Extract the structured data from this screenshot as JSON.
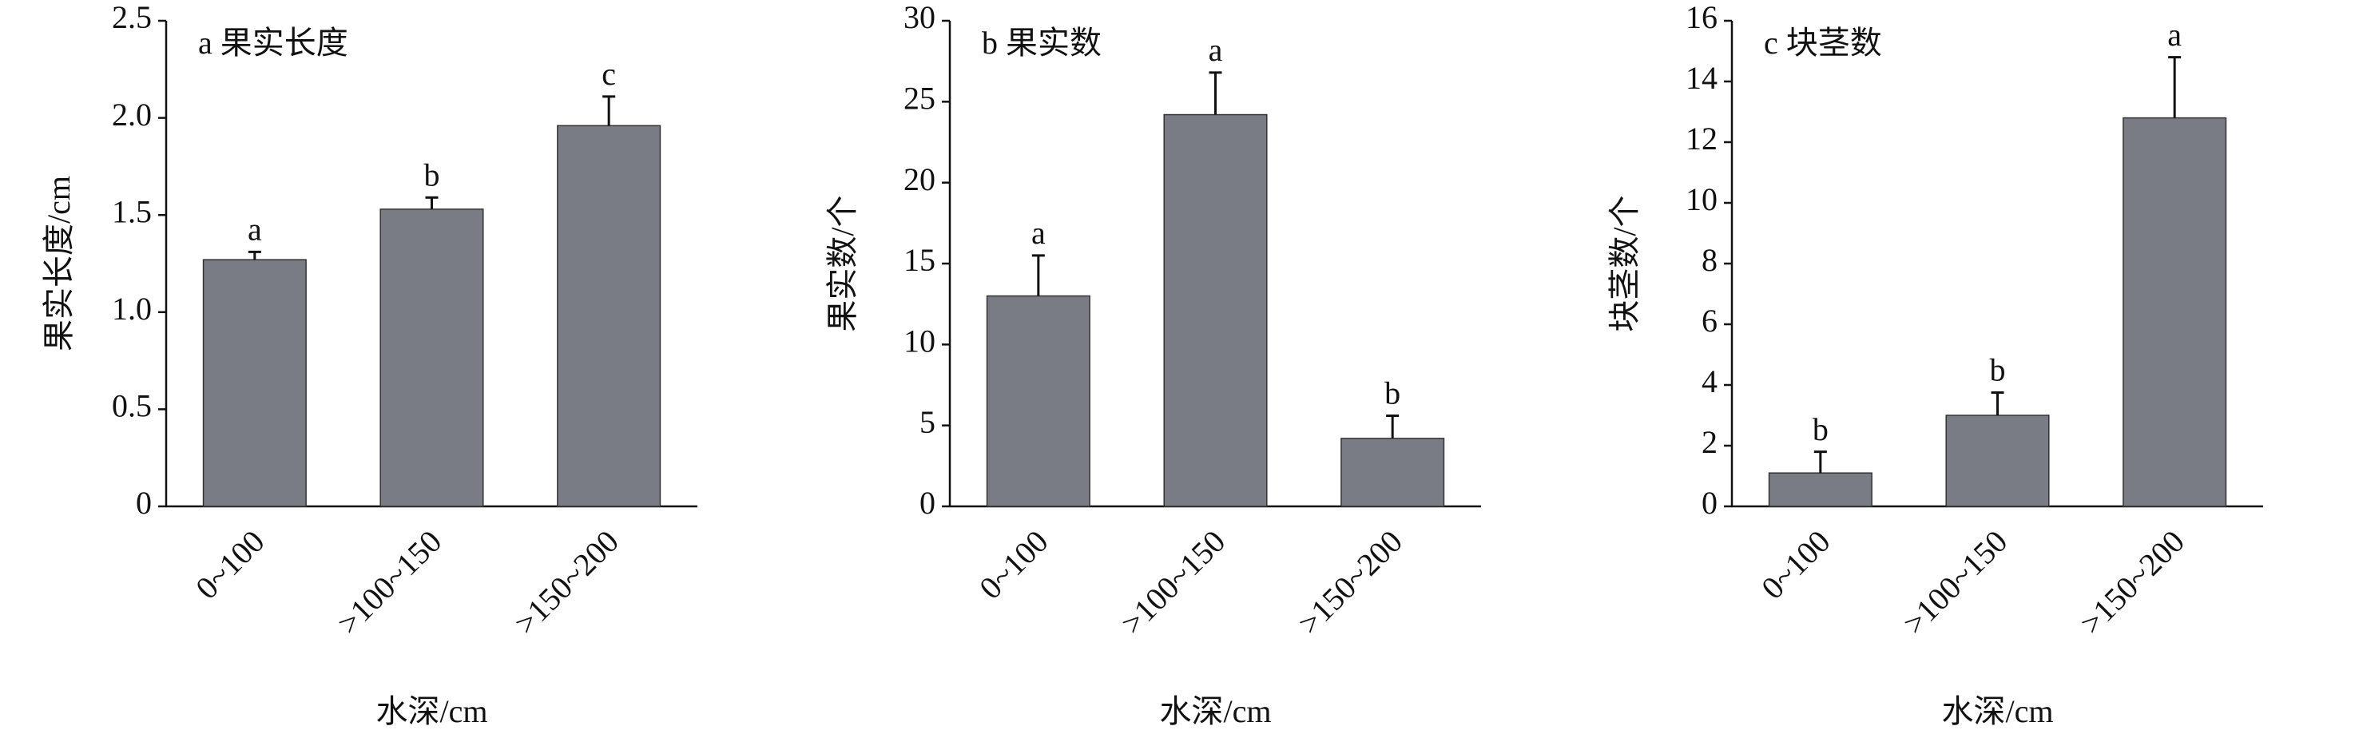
{
  "chart_data": [
    {
      "type": "bar",
      "title": "a 果实长度",
      "xlabel": "水深/cm",
      "ylabel": "果实长度/cm",
      "categories": [
        "0~100",
        ">100~150",
        ">150~200"
      ],
      "color": "#797c84",
      "values": [
        1.27,
        1.53,
        1.96
      ],
      "errors": [
        0.04,
        0.06,
        0.15
      ],
      "significance": [
        "a",
        "b",
        "c"
      ],
      "ylim": [
        0,
        2.5
      ],
      "yticks": [
        0,
        0.5,
        {
          "value": 1,
          "label": "1.0"
        },
        1.5,
        {
          "value": 2,
          "label": "2.0"
        },
        2.5
      ]
    },
    {
      "type": "bar",
      "title": "b 果实数",
      "xlabel": "水深/cm",
      "ylabel": "果实数/个",
      "categories": [
        "0~100",
        ">100~150",
        ">150~200"
      ],
      "color": "#797c84",
      "values": [
        13,
        24.2,
        4.2
      ],
      "errors": [
        2.5,
        2.6,
        1.4
      ],
      "significance": [
        "a",
        "a",
        "b"
      ],
      "ylim": [
        0,
        30
      ],
      "yticks": [
        0,
        5,
        10,
        15,
        20,
        25,
        30
      ]
    },
    {
      "type": "bar",
      "title": "c 块茎数",
      "xlabel": "水深/cm",
      "ylabel": "块茎数/个",
      "categories": [
        "0~100",
        ">100~150",
        ">150~200"
      ],
      "color": "#797c84",
      "values": [
        1.1,
        3.0,
        12.8
      ],
      "errors": [
        0.7,
        0.75,
        2.0
      ],
      "significance": [
        "b",
        "b",
        "a"
      ],
      "ylim": [
        0,
        16
      ],
      "yticks": [
        0,
        2,
        4,
        6,
        8,
        10,
        12,
        14,
        16
      ]
    }
  ]
}
